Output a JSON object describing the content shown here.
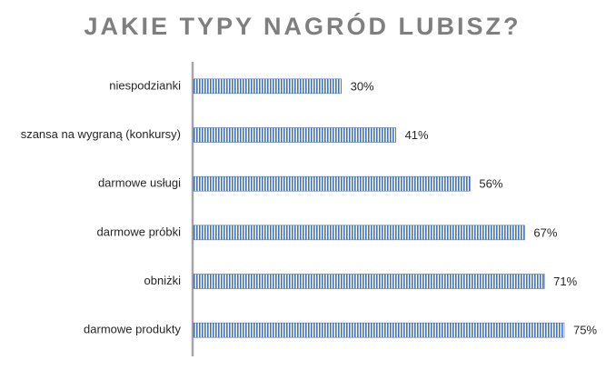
{
  "chart_data": {
    "type": "bar",
    "orientation": "horizontal",
    "title": "JAKIE TYPY NAGRÓD LUBISZ?",
    "categories": [
      "niespodzianki",
      "szansa na wygraną (konkursy)",
      "darmowe usługi",
      "darmowe próbki",
      "obniżki",
      "darmowe produkty"
    ],
    "values": [
      30,
      41,
      56,
      67,
      71,
      75
    ],
    "value_labels": [
      "30%",
      "41%",
      "56%",
      "67%",
      "71%",
      "75%"
    ],
    "color": "#4472c4"
  }
}
